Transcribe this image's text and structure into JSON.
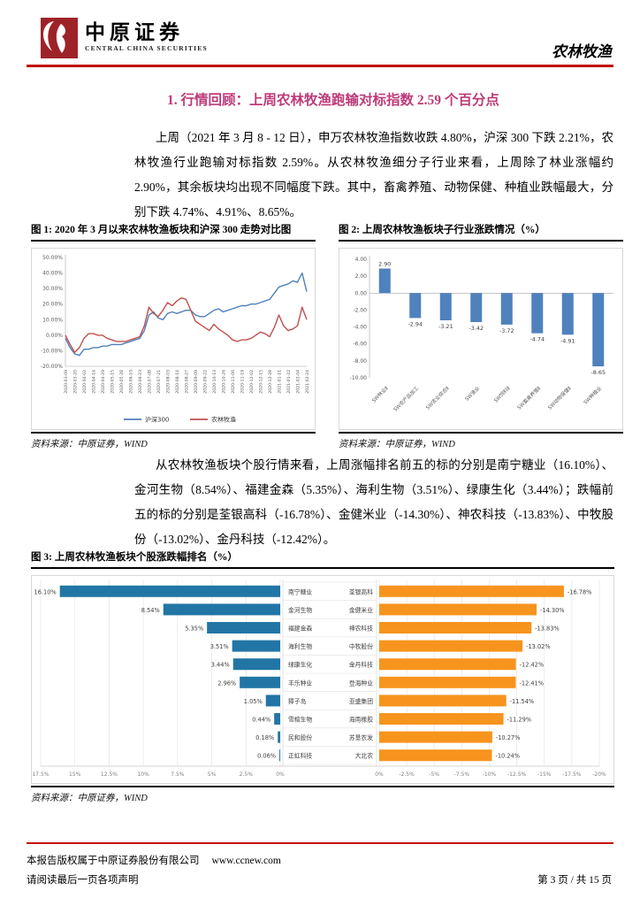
{
  "header": {
    "logo_cn": "中原证券",
    "logo_en": "CENTRAL CHINA SECURITIES",
    "report_category": "农林牧渔"
  },
  "section": {
    "title": "1. 行情回顾：上周农林牧渔跑输对标指数 2.59 个百分点"
  },
  "paragraphs": {
    "p1": "上周（2021 年 3 月 8 - 12 日），申万农林牧渔指数收跌 4.80%，沪深 300 下跌 2.21%，农林牧渔行业跑输对标指数 2.59%。从农林牧渔细分子行业来看，上周除了林业涨幅约 2.90%，其余板块均出现不同幅度下跌。其中，畜禽养殖、动物保健、种植业跌幅最大，分别下跌 4.74%、4.91%、8.65%。",
    "p2": "从农林牧渔板块个股行情来看，上周涨幅排名前五的标的分别是南宁糖业（16.10%）、金河生物（8.54%）、福建金森（5.35%）、海利生物（3.51%）、绿康生化（3.44%）；跌幅前五的标的分别是荃银高科（-16.78%）、金健米业（-14.30%）、神农科技（-13.83%）、中牧股份（-13.02%）、金丹科技（-12.42%）。"
  },
  "figures": {
    "fig1": {
      "title": "图 1: 2020 年 3 月以来农林牧渔板块和沪深 300 走势对比图",
      "source": "资料来源：中原证券，WIND"
    },
    "fig2": {
      "title": "图 2: 上周农林牧渔板块子行业涨跌情况（%）",
      "source": "资料来源：中原证券，WIND"
    },
    "fig3": {
      "title": "图 3: 上周农林牧渔板块个股涨跌幅排名（%）",
      "source": "资料来源：中原证券，WIND"
    }
  },
  "footer": {
    "copyright": "本报告版权属于中原证券股份有限公司",
    "url": "www.ccnew.com",
    "disclaimer": "请阅读最后一页各项声明",
    "page": "第 3 页 / 共 15 页"
  },
  "colors": {
    "brand_red": "#C00000",
    "section_title": "#BE3A78",
    "hs300_line": "#4F81BD",
    "agri_line": "#C0504D",
    "subindustry_bar": "#4F81BD",
    "gainer_bar": "#2176A5",
    "loser_bar": "#F7941D"
  },
  "chart_data": [
    {
      "type": "line",
      "title": "2020 年 3 月以来农林牧渔板块和沪深 300 走势对比图",
      "x_labels": [
        "2020-03-09",
        "2020-03-20",
        "2020-04-02",
        "2020-04-16",
        "2020-04-29",
        "2020-05-15",
        "2020-05-28",
        "2020-06-10",
        "2020-06-23",
        "2020-07-08",
        "2020-07-21",
        "2020-08-03",
        "2020-08-14",
        "2020-08-27",
        "2020-09-09",
        "2020-09-22",
        "2020-10-13",
        "2020-10-26",
        "2020-11-06",
        "2020-11-19",
        "2020-12-02",
        "2020-12-15",
        "2020-12-28",
        "2021-01-11",
        "2021-01-22",
        "2021-02-04",
        "2021-02-24"
      ],
      "samples_per_label": 2,
      "ylim": [
        -20,
        50
      ],
      "yticks": [
        50,
        40,
        30,
        20,
        10,
        0,
        -10,
        -20
      ],
      "ytick_format": "percent2",
      "grid": false,
      "legend_position": "bottom",
      "series": [
        {
          "name": "沪深300",
          "color": "#4F81BD",
          "values": [
            -2,
            -8,
            -12,
            -13,
            -9,
            -9,
            -8,
            -8,
            -7,
            -7,
            -6,
            -6,
            -6,
            -5,
            -4,
            -3,
            -2,
            3,
            13,
            15,
            11,
            10,
            14,
            15,
            14,
            15,
            16,
            16,
            13,
            12,
            12,
            14,
            16,
            17,
            15,
            16,
            17,
            18,
            19,
            19,
            20,
            20,
            21,
            22,
            23,
            27,
            31,
            32,
            33,
            35,
            34,
            40,
            28
          ]
        },
        {
          "name": "农林牧渔",
          "color": "#C0504D",
          "values": [
            0,
            -6,
            -11,
            -8,
            -2,
            1,
            1,
            0,
            0,
            -2,
            -3,
            -4,
            -4,
            -4,
            -3,
            -2,
            -1,
            6,
            18,
            14,
            12,
            16,
            21,
            19,
            22,
            24,
            23,
            16,
            9,
            7,
            5,
            3,
            7,
            4,
            2,
            0,
            -3,
            -4,
            -3,
            -3,
            -2,
            0,
            2,
            1,
            -1,
            5,
            13,
            6,
            3,
            4,
            6,
            18,
            10
          ]
        }
      ]
    },
    {
      "type": "bar",
      "title": "上周农林牧渔板块子行业涨跌情况（%）",
      "categories": [
        "SW林业Ⅱ",
        "SW农产品加工",
        "SW农业综合Ⅱ",
        "SW渔业",
        "SW饲料Ⅱ",
        "SW畜禽养殖Ⅱ",
        "SW动物保健Ⅱ",
        "SW种植业"
      ],
      "values": [
        2.9,
        -2.94,
        -3.21,
        -3.42,
        -3.72,
        -4.74,
        -4.91,
        -8.65
      ],
      "bar_color": "#4F81BD",
      "ylim": [
        -10,
        4
      ],
      "yticks": [
        4,
        2,
        0,
        -2,
        -4,
        -6,
        -8,
        -10
      ]
    },
    {
      "type": "tornado_bar",
      "title": "上周农林牧渔板块个股涨跌幅排名（%）",
      "gainers": {
        "color": "#2176A5",
        "names": [
          "南宁糖业",
          "金河生物",
          "福建金森",
          "海利生物",
          "绿康生化",
          "丰乐种业",
          "獐子岛",
          "雪榕生物",
          "民和股份",
          "正虹科技"
        ],
        "values": [
          16.1,
          8.54,
          5.35,
          3.51,
          3.44,
          2.96,
          1.05,
          0.44,
          0.18,
          0.06
        ]
      },
      "losers": {
        "color": "#F7941D",
        "names": [
          "荃银高科",
          "金健米业",
          "神农科技",
          "中牧股份",
          "金丹科技",
          "登海种业",
          "亚盛集团",
          "海南橡胶",
          "苏垦农发",
          "大北农"
        ],
        "values": [
          -16.78,
          -14.3,
          -13.83,
          -13.02,
          -12.42,
          -12.41,
          -11.54,
          -11.29,
          -10.27,
          -10.24
        ]
      },
      "left_max": 17.5,
      "right_min": -20,
      "axis_left_ticks": [
        "17.5%",
        "15%",
        "12.5%",
        "10%",
        "7.5%",
        "5%",
        "2.5%",
        "0%"
      ],
      "axis_right_ticks": [
        "0%",
        "-2.5%",
        "-5%",
        "-7.5%",
        "-10%",
        "-12.5%",
        "-15%",
        "-17.5%",
        "-20%"
      ]
    }
  ]
}
